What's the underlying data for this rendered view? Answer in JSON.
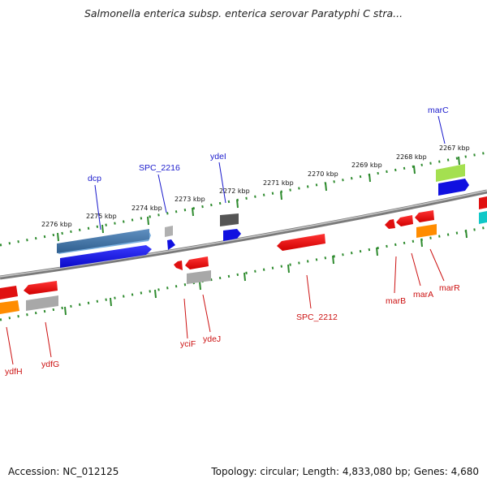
{
  "title": "Salmonella enterica subsp. enterica serovar Paratyphi C stra...",
  "footer": {
    "accession": "Accession: NC_012125",
    "info": "Topology: circular; Length: 4,833,080 bp; Genes: 4,680"
  },
  "colors": {
    "forward_label": "#1a1acc",
    "reverse_label": "#cc1111",
    "backbone": "#8a8a8a",
    "tick": "#2e8b2e"
  },
  "kbp_ticks": [
    "2276 kbp",
    "2275 kbp",
    "2274 kbp",
    "2273 kbp",
    "2272 kbp",
    "2271 kbp",
    "2270 kbp",
    "2269 kbp",
    "2268 kbp",
    "2267 kbp"
  ],
  "forward_labels": [
    "dcp",
    "SPC_2216",
    "ydeI",
    "marC"
  ],
  "reverse_labels": [
    "ydfH",
    "ydfG",
    "yciF",
    "ydeJ",
    "SPC_2212",
    "marB",
    "marA",
    "marR"
  ]
}
